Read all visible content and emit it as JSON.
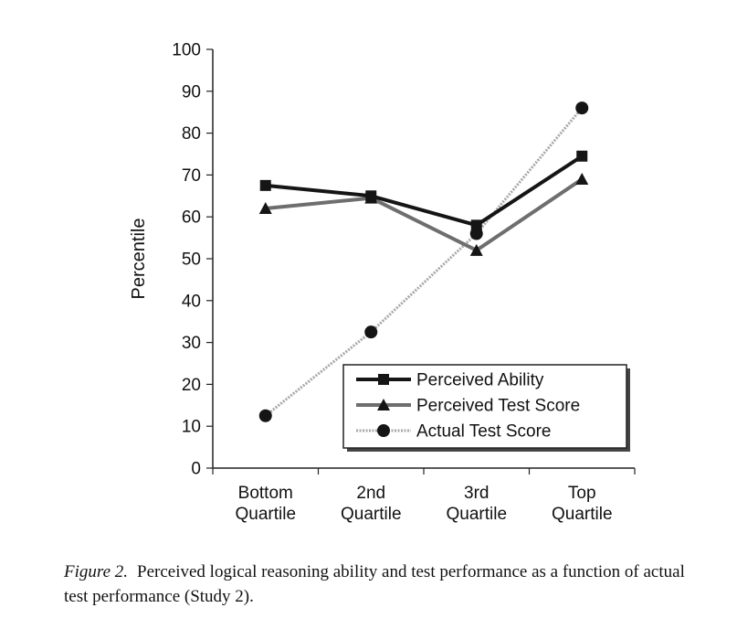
{
  "chart_data": {
    "type": "line",
    "title": "",
    "xlabel": "",
    "ylabel": "Percentile",
    "ylim": [
      0,
      100
    ],
    "yticks": [
      0,
      10,
      20,
      30,
      40,
      50,
      60,
      70,
      80,
      90,
      100
    ],
    "categories": [
      [
        "Bottom",
        "Quartile"
      ],
      [
        "2nd",
        "Quartile"
      ],
      [
        "3rd",
        "Quartile"
      ],
      [
        "Top",
        "Quartile"
      ]
    ],
    "series": [
      {
        "name": "Perceived Ability",
        "marker": "square",
        "color": "#151515",
        "values": [
          67.5,
          65,
          58,
          74.5
        ]
      },
      {
        "name": "Perceived Test Score",
        "marker": "triangle",
        "color": "#6e6e6e",
        "values": [
          62,
          64.5,
          52,
          69
        ]
      },
      {
        "name": "Actual Test Score",
        "marker": "circle",
        "color": "#a8a8a8",
        "values": [
          12.5,
          32.5,
          56,
          86
        ]
      }
    ],
    "legend_position": "bottom-right"
  },
  "caption": {
    "label": "Figure 2.",
    "text": "Perceived logical reasoning ability and test performance as a function of actual test performance (Study 2)."
  }
}
